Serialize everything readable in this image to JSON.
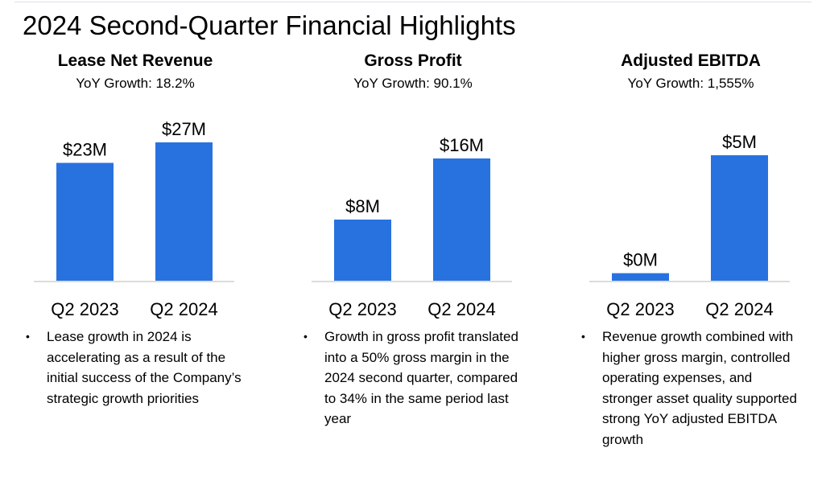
{
  "page": {
    "title": "2024 Second-Quarter Financial Highlights"
  },
  "bullet_symbol": "•",
  "colors": {
    "bar": "#2872e0",
    "axis": "#d0d0d0"
  },
  "panels": [
    {
      "title": "Lease Net Revenue",
      "subtitle": "YoY Growth: 18.2%",
      "bullet": "Lease growth in 2024 is accelerating as a result of the initial success of the Company’s strategic growth priorities"
    },
    {
      "title": "Gross Profit",
      "subtitle": "YoY Growth: 90.1%",
      "bullet": "Growth in gross profit translated into a 50% gross margin in the 2024 second quarter, compared to 34% in the same period last year"
    },
    {
      "title": "Adjusted EBITDA",
      "subtitle": "YoY Growth: 1,555%",
      "bullet": "Revenue growth combined with higher gross margin, controlled operating expenses, and stronger asset quality supported strong YoY adjusted EBITDA growth"
    }
  ],
  "chart_data": [
    {
      "type": "bar",
      "title": "Lease Net Revenue",
      "subtitle": "YoY Growth: 18.2%",
      "categories": [
        "Q2 2023",
        "Q2 2024"
      ],
      "values": [
        23,
        27
      ],
      "labels": [
        "$23M",
        "$27M"
      ],
      "unit": "$M",
      "ylim": [
        0,
        30
      ]
    },
    {
      "type": "bar",
      "title": "Gross Profit",
      "subtitle": "YoY Growth: 90.1%",
      "categories": [
        "Q2 2023",
        "Q2 2024"
      ],
      "values": [
        8,
        16
      ],
      "labels": [
        "$8M",
        "$16M"
      ],
      "unit": "$M",
      "ylim": [
        0,
        20
      ]
    },
    {
      "type": "bar",
      "title": "Adjusted EBITDA",
      "subtitle": "YoY Growth: 1,555%",
      "categories": [
        "Q2 2023",
        "Q2 2024"
      ],
      "values": [
        0.3,
        5
      ],
      "labels": [
        "$0M",
        "$5M"
      ],
      "unit": "$M",
      "ylim": [
        0,
        6
      ]
    }
  ]
}
